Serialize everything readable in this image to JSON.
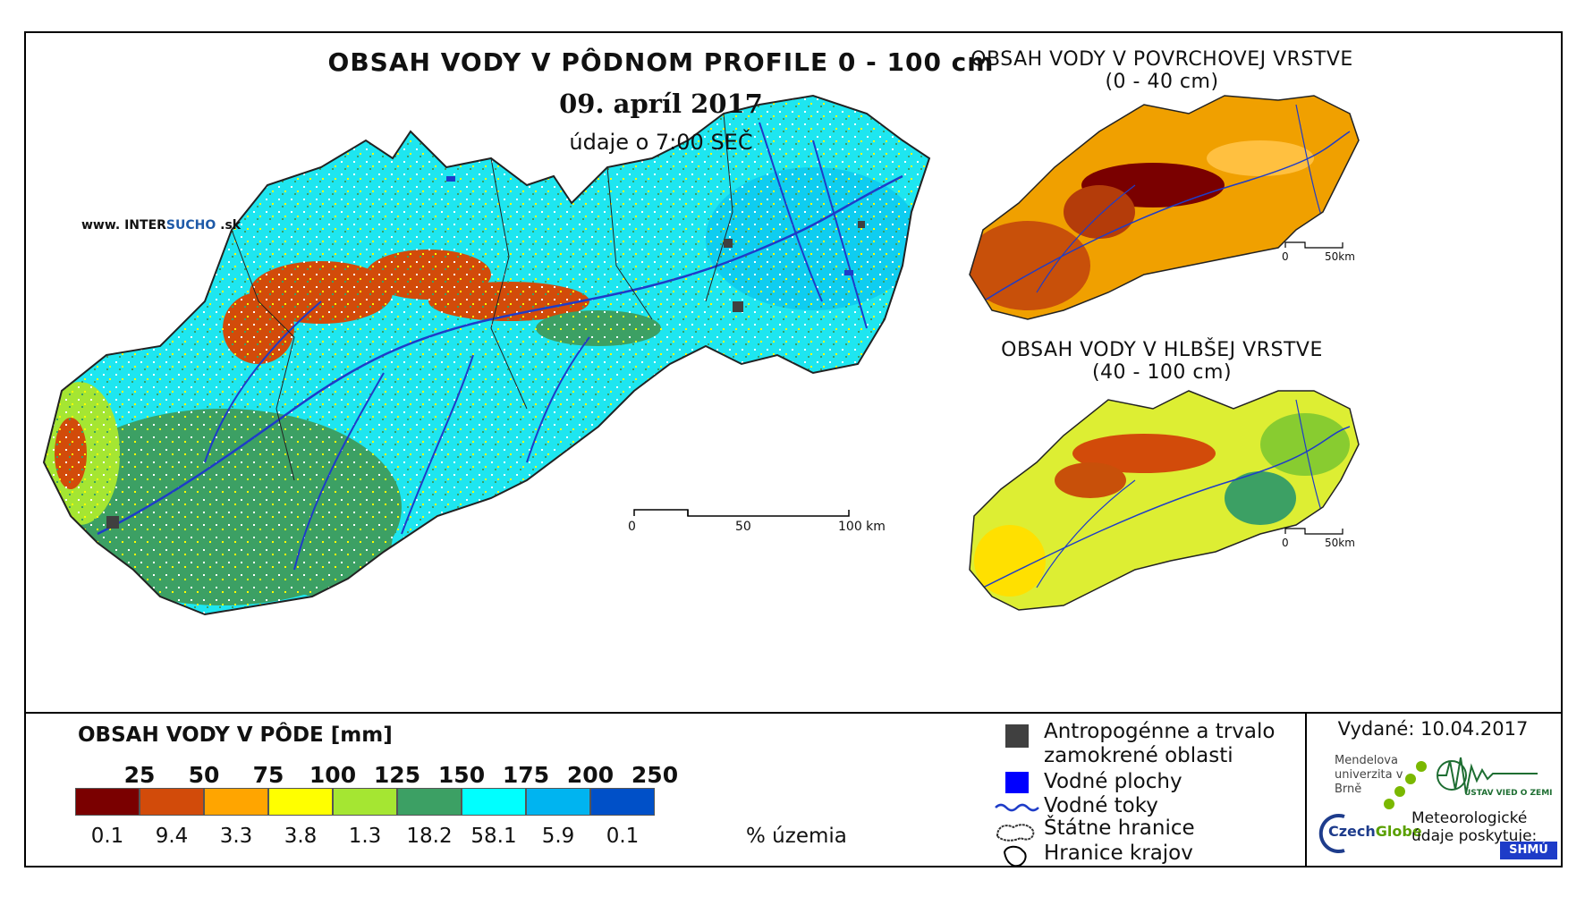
{
  "main_map": {
    "title": "OBSAH VODY V PÔDNOM PROFILE 0 - 100 cm",
    "date": "09. apríl 2017",
    "time_note": "údaje o 7:00 SEČ",
    "website": {
      "prefix": "www. INTER",
      "highlight": "SUCHO",
      "suffix": " .sk"
    },
    "scale": {
      "labels": [
        "0",
        "50",
        "100 km"
      ]
    }
  },
  "surface_map": {
    "title_line1": "OBSAH VODY V POVRCHOVEJ VRSTVE",
    "title_line2": "(0 - 40 cm)",
    "scale": {
      "labels": [
        "0",
        "50km"
      ]
    }
  },
  "deep_map": {
    "title_line1": "OBSAH VODY V HLBŠEJ VRSTVE",
    "title_line2": "(40 - 100 cm)",
    "scale": {
      "labels": [
        "0",
        "50km"
      ]
    }
  },
  "legend": {
    "title": "OBSAH VODY V PÔDE [mm]",
    "classes": [
      {
        "label": "25",
        "color": "#7a0000",
        "percent": "0.1"
      },
      {
        "label": "50",
        "color": "#d24b0a",
        "percent": "9.4"
      },
      {
        "label": "75",
        "color": "#ffa500",
        "percent": "3.3"
      },
      {
        "label": "100",
        "color": "#ffff00",
        "percent": "3.8"
      },
      {
        "label": "125",
        "color": "#a5e632",
        "percent": "1.3"
      },
      {
        "label": "150",
        "color": "#3ca064",
        "percent": "18.2"
      },
      {
        "label": "175",
        "color": "#00ffff",
        "percent": "58.1"
      },
      {
        "label": "200",
        "color": "#00b4f0",
        "percent": "5.9"
      },
      {
        "label": "250",
        "color": "#0050c8",
        "percent": "0.1"
      }
    ],
    "percent_unit": "% územia"
  },
  "symbols": [
    {
      "icon": "gray-square-icon",
      "label_line1": "Antropogénne a trvalo",
      "label_line2": "zamokrené oblasti"
    },
    {
      "icon": "blue-square-icon",
      "label_line1": "Vodné plochy"
    },
    {
      "icon": "wavy-line-icon",
      "label_line1": "Vodné toky"
    },
    {
      "icon": "country-border-icon",
      "label_line1": "Štátne hranice"
    },
    {
      "icon": "region-border-icon",
      "label_line1": "Hranice krajov"
    }
  ],
  "issued": "Vydané: 10.04.2017",
  "logos": {
    "mendel": "Mendelova univerzita v Brně",
    "czechglobe_a": "Czech",
    "czechglobe_b": "Globe",
    "ustav": "ÚSTAV VIED O ZEMI",
    "meteo": "Meteorologické údaje poskytuje:",
    "shmu": "SHMÚ"
  },
  "colors": {
    "frame": "#000000",
    "river": "#1e3cc8",
    "urban": "#404040"
  }
}
